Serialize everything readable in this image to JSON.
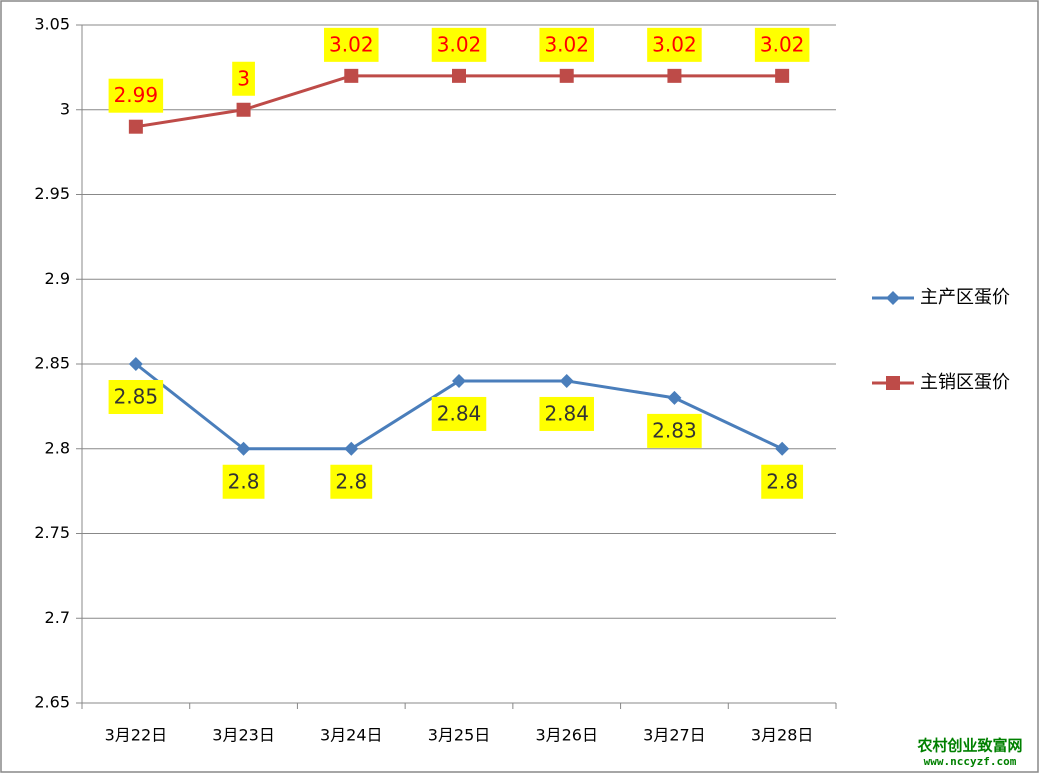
{
  "chart_data": {
    "type": "line",
    "categories": [
      "3月22日",
      "3月23日",
      "3月24日",
      "3月25日",
      "3月26日",
      "3月27日",
      "3月28日"
    ],
    "series": [
      {
        "name": "主产区蛋价",
        "color": "#4a7ebb",
        "marker": "diamond",
        "label_color": "#333333",
        "label_position": "below",
        "values": [
          2.85,
          2.8,
          2.8,
          2.84,
          2.84,
          2.83,
          2.8
        ]
      },
      {
        "name": "主销区蛋价",
        "color": "#be4b48",
        "marker": "square",
        "label_color": "#ff0000",
        "label_position": "above",
        "values": [
          2.99,
          3,
          3.02,
          3.02,
          3.02,
          3.02,
          3.02
        ]
      }
    ],
    "label_background": "#ffff00",
    "ylim": [
      2.65,
      3.05
    ],
    "yticks": [
      2.65,
      2.7,
      2.75,
      2.8,
      2.85,
      2.9,
      2.95,
      3,
      3.05
    ],
    "grid": true,
    "legend": "right",
    "watermark": {
      "site": "农村创业致富网",
      "url": "www.nccyzf.com"
    }
  }
}
